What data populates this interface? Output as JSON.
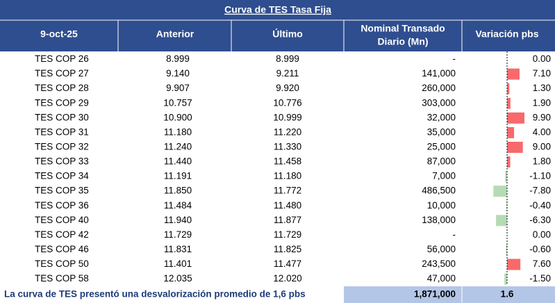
{
  "table": {
    "title": "Curva de TES Tasa Fija",
    "headers": [
      "9-oct-25",
      "Anterior",
      "Último",
      [
        "Nominal Transado",
        "Diario (Mn)"
      ],
      "Variación pbs"
    ],
    "rows": [
      [
        "TES COP 26",
        "8.999",
        "8.999",
        "-",
        {
          "value": 0,
          "label": "0.00"
        }
      ],
      [
        "TES COP 27",
        "9.140",
        "9.211",
        "141,000",
        {
          "value": 7.1,
          "label": "7.10"
        }
      ],
      [
        "TES COP 28",
        "9.907",
        "9.920",
        "260,000",
        {
          "value": 1.3,
          "label": "1.30"
        }
      ],
      [
        "TES COP 29",
        "10.757",
        "10.776",
        "303,000",
        {
          "value": 1.9,
          "label": "1.90"
        }
      ],
      [
        "TES COP 30",
        "10.900",
        "10.999",
        "32,000",
        {
          "value": 9.9,
          "label": "9.90"
        }
      ],
      [
        "TES COP 31",
        "11.180",
        "11.220",
        "35,000",
        {
          "value": 4,
          "label": "4.00"
        }
      ],
      [
        "TES COP 32",
        "11.240",
        "11.330",
        "25,000",
        {
          "value": 9,
          "label": "9.00"
        }
      ],
      [
        "TES COP 33",
        "11.440",
        "11.458",
        "87,000",
        {
          "value": 1.8,
          "label": "1.80"
        }
      ],
      [
        "TES COP 34",
        "11.191",
        "11.180",
        "7,000",
        {
          "value": -1.1,
          "label": "-1.10"
        }
      ],
      [
        "TES COP 35",
        "11.850",
        "11.772",
        "486,500",
        {
          "value": -7.8,
          "label": "-7.80"
        }
      ],
      [
        "TES COP 36",
        "11.484",
        "11.480",
        "10,000",
        {
          "value": -0.4,
          "label": "-0.40"
        }
      ],
      [
        "TES COP 40",
        "11.940",
        "11.877",
        "138,000",
        {
          "value": -6.3,
          "label": "-6.30"
        }
      ],
      [
        "TES COP 42",
        "11.729",
        "11.729",
        "-",
        {
          "value": 0,
          "label": "0.00"
        }
      ],
      [
        "TES COP 46",
        "11.831",
        "11.825",
        "56,000",
        {
          "value": -0.6,
          "label": "-0.60"
        }
      ],
      [
        "TES COP 50",
        "11.401",
        "11.477",
        "243,500",
        {
          "value": 7.6,
          "label": "7.60"
        }
      ],
      [
        "TES COP 58",
        "12.035",
        "12.020",
        "47,000",
        {
          "value": -1.5,
          "label": "-1.50"
        }
      ]
    ]
  },
  "footer": {
    "note": "La curva de TES presentó una desvalorización promedio de 1,6 pbs",
    "total": "1,871,000",
    "variation": "1.6"
  }
}
